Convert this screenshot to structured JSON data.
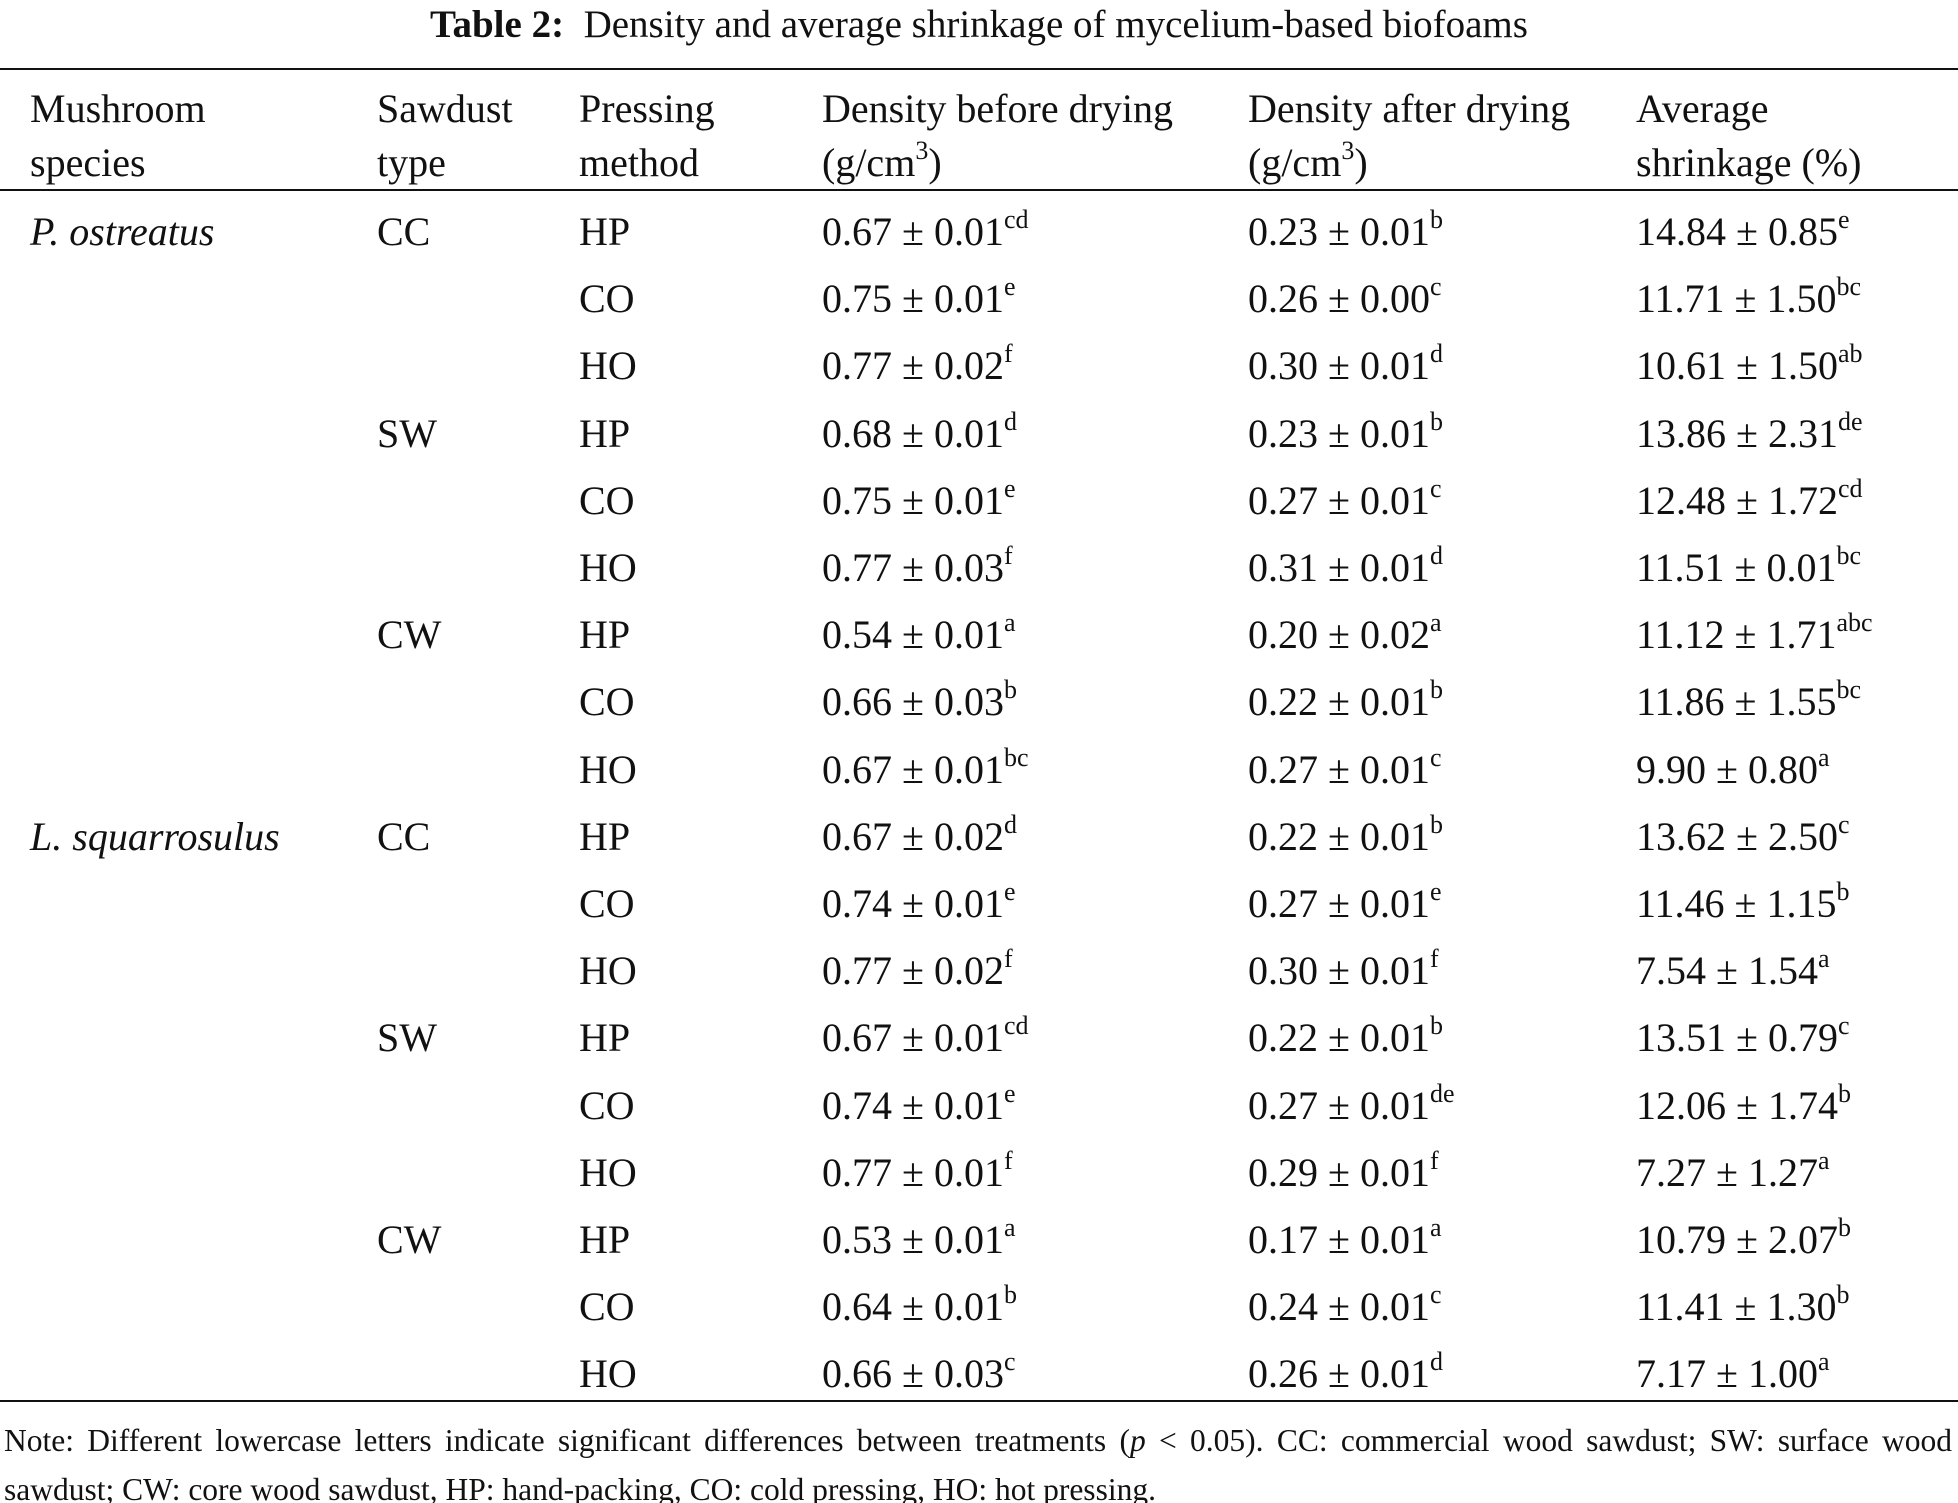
{
  "title": {
    "label": "Table 2:",
    "text": "Density and average shrinkage of mycelium-based biofoams"
  },
  "header": [
    {
      "line1": "Mushroom",
      "line2": "species"
    },
    {
      "line1": "Sawdust",
      "line2": "type"
    },
    {
      "line1": "Pressing",
      "line2": "method"
    },
    {
      "line1": "Density before drying",
      "line2": "(g/cm",
      "sup": "3",
      "tail": ")"
    },
    {
      "line1": "Density after drying",
      "line2": "(g/cm",
      "sup": "3",
      "tail": ")"
    },
    {
      "line1": "Average",
      "line2": "shrinkage (%)"
    }
  ],
  "groups": [
    {
      "species": "P. ostreatus",
      "sawdust": [
        {
          "type": "CC",
          "rows": [
            {
              "method": "HP",
              "before": {
                "v": "0.67 ± 0.01",
                "s": "cd"
              },
              "after": {
                "v": "0.23 ± 0.01",
                "s": "b"
              },
              "shrink": {
                "v": "14.84 ± 0.85",
                "s": "e"
              }
            },
            {
              "method": "CO",
              "before": {
                "v": "0.75 ± 0.01",
                "s": "e"
              },
              "after": {
                "v": "0.26 ± 0.00",
                "s": "c"
              },
              "shrink": {
                "v": "11.71 ± 1.50",
                "s": "bc"
              }
            },
            {
              "method": "HO",
              "before": {
                "v": "0.77 ± 0.02",
                "s": "f"
              },
              "after": {
                "v": "0.30 ± 0.01",
                "s": "d"
              },
              "shrink": {
                "v": "10.61 ± 1.50",
                "s": "ab"
              }
            }
          ]
        },
        {
          "type": "SW",
          "rows": [
            {
              "method": "HP",
              "before": {
                "v": "0.68 ± 0.01",
                "s": "d"
              },
              "after": {
                "v": "0.23 ± 0.01",
                "s": "b"
              },
              "shrink": {
                "v": "13.86 ± 2.31",
                "s": "de"
              }
            },
            {
              "method": "CO",
              "before": {
                "v": "0.75 ± 0.01",
                "s": "e"
              },
              "after": {
                "v": "0.27 ± 0.01",
                "s": "c"
              },
              "shrink": {
                "v": "12.48 ± 1.72",
                "s": "cd"
              }
            },
            {
              "method": "HO",
              "before": {
                "v": "0.77 ± 0.03",
                "s": "f"
              },
              "after": {
                "v": "0.31 ± 0.01",
                "s": "d"
              },
              "shrink": {
                "v": "11.51 ± 0.01",
                "s": "bc"
              }
            }
          ]
        },
        {
          "type": "CW",
          "rows": [
            {
              "method": "HP",
              "before": {
                "v": "0.54 ± 0.01",
                "s": "a"
              },
              "after": {
                "v": "0.20 ± 0.02",
                "s": "a"
              },
              "shrink": {
                "v": "11.12 ± 1.71",
                "s": "abc"
              }
            },
            {
              "method": "CO",
              "before": {
                "v": "0.66 ± 0.03",
                "s": "b"
              },
              "after": {
                "v": "0.22 ± 0.01",
                "s": "b"
              },
              "shrink": {
                "v": "11.86 ± 1.55",
                "s": "bc"
              }
            },
            {
              "method": "HO",
              "before": {
                "v": "0.67 ± 0.01",
                "s": "bc"
              },
              "after": {
                "v": "0.27 ± 0.01",
                "s": "c"
              },
              "shrink": {
                "v": "9.90 ± 0.80",
                "s": "a"
              }
            }
          ]
        }
      ]
    },
    {
      "species": "L. squarrosulus",
      "sawdust": [
        {
          "type": "CC",
          "rows": [
            {
              "method": "HP",
              "before": {
                "v": "0.67 ± 0.02",
                "s": "d"
              },
              "after": {
                "v": "0.22 ± 0.01",
                "s": "b"
              },
              "shrink": {
                "v": "13.62 ± 2.50",
                "s": "c"
              }
            },
            {
              "method": "CO",
              "before": {
                "v": "0.74 ± 0.01",
                "s": "e"
              },
              "after": {
                "v": "0.27 ± 0.01",
                "s": "e"
              },
              "shrink": {
                "v": "11.46 ± 1.15",
                "s": "b"
              }
            },
            {
              "method": "HO",
              "before": {
                "v": "0.77 ± 0.02",
                "s": "f"
              },
              "after": {
                "v": "0.30 ± 0.01",
                "s": "f"
              },
              "shrink": {
                "v": "7.54 ± 1.54",
                "s": "a"
              }
            }
          ]
        },
        {
          "type": "SW",
          "rows": [
            {
              "method": "HP",
              "before": {
                "v": "0.67 ± 0.01",
                "s": "cd"
              },
              "after": {
                "v": "0.22 ± 0.01",
                "s": "b"
              },
              "shrink": {
                "v": "13.51 ± 0.79",
                "s": "c"
              }
            },
            {
              "method": "CO",
              "before": {
                "v": "0.74 ± 0.01",
                "s": "e"
              },
              "after": {
                "v": "0.27 ± 0.01",
                "s": "de"
              },
              "shrink": {
                "v": "12.06 ± 1.74",
                "s": "b"
              }
            },
            {
              "method": "HO",
              "before": {
                "v": "0.77 ± 0.01",
                "s": "f"
              },
              "after": {
                "v": "0.29 ± 0.01",
                "s": "f"
              },
              "shrink": {
                "v": "7.27 ± 1.27",
                "s": "a"
              }
            }
          ]
        },
        {
          "type": "CW",
          "rows": [
            {
              "method": "HP",
              "before": {
                "v": "0.53 ± 0.01",
                "s": "a"
              },
              "after": {
                "v": "0.17 ± 0.01",
                "s": "a"
              },
              "shrink": {
                "v": "10.79 ± 2.07",
                "s": "b"
              }
            },
            {
              "method": "CO",
              "before": {
                "v": "0.64 ± 0.01",
                "s": "b"
              },
              "after": {
                "v": "0.24 ± 0.01",
                "s": "c"
              },
              "shrink": {
                "v": "11.41 ± 1.30",
                "s": "b"
              }
            },
            {
              "method": "HO",
              "before": {
                "v": "0.66 ± 0.03",
                "s": "c"
              },
              "after": {
                "v": "0.26 ± 0.01",
                "s": "d"
              },
              "shrink": {
                "v": "7.17 ± 1.00",
                "s": "a"
              }
            }
          ]
        }
      ]
    }
  ],
  "note": {
    "before": "Note: Different lowercase letters indicate significant differences between treatments (",
    "italic": "p",
    "after": " < 0.05). CC: commercial wood sawdust; SW: surface wood sawdust; CW: core wood sawdust, HP: hand-packing, CO: cold pressing, HO: hot pressing."
  }
}
